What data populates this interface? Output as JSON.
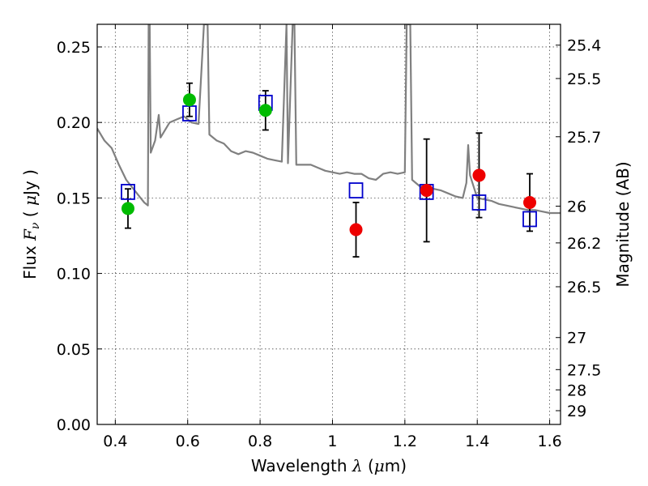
{
  "chart_data": {
    "type": "scatter",
    "title": "",
    "xlabel": {
      "prefix": "Wavelength  ",
      "symbol": "λ",
      "open": " (",
      "mu": "μ",
      "unit": "m)"
    },
    "ylabel": {
      "prefix": "Flux  ",
      "symbol": "F",
      "sub": "ν",
      "open": "  ( ",
      "mu": "μ",
      "unit": "Jy )"
    },
    "y2label": "Magnitude (AB)",
    "xlim": [
      0.35,
      1.63
    ],
    "ylim": [
      0.0,
      0.265
    ],
    "x_ticks": [
      0.4,
      0.6,
      0.8,
      1.0,
      1.2,
      1.4,
      1.6
    ],
    "x_tick_labels": [
      "0.4",
      "0.6",
      "0.8",
      "1",
      "1.2",
      "1.4",
      "1.6"
    ],
    "y_ticks": [
      0.0,
      0.05,
      0.1,
      0.15,
      0.2,
      0.25
    ],
    "y_tick_labels": [
      "0.00",
      "0.05",
      "0.10",
      "0.15",
      "0.20",
      "0.25"
    ],
    "y2_tick_labels": [
      "25.4",
      "25.5",
      "25.7",
      "26",
      "26.2",
      "26.5",
      "27",
      "27.5",
      "28",
      "29"
    ],
    "grid": true,
    "colors": {
      "spectrum": "#808080",
      "model_photometry": "#0000cc",
      "optical_obs": "#00bb00",
      "nir_obs": "#ee0000",
      "error_bar": "#000000"
    },
    "series": [
      {
        "kind": "line",
        "points": [
          [
            0.35,
            0.196
          ],
          [
            0.37,
            0.188
          ],
          [
            0.39,
            0.183
          ],
          [
            0.41,
            0.172
          ],
          [
            0.43,
            0.162
          ],
          [
            0.45,
            0.156
          ],
          [
            0.47,
            0.15
          ],
          [
            0.48,
            0.147
          ],
          [
            0.49,
            0.145
          ],
          [
            0.492,
            0.265
          ],
          [
            0.495,
            0.265
          ],
          [
            0.498,
            0.18
          ],
          [
            0.51,
            0.188
          ],
          [
            0.52,
            0.205
          ],
          [
            0.525,
            0.19
          ],
          [
            0.55,
            0.2
          ],
          [
            0.57,
            0.202
          ],
          [
            0.59,
            0.204
          ],
          [
            0.61,
            0.2
          ],
          [
            0.63,
            0.199
          ],
          [
            0.645,
            0.265
          ],
          [
            0.65,
            0.265
          ],
          [
            0.655,
            0.265
          ],
          [
            0.66,
            0.192
          ],
          [
            0.68,
            0.188
          ],
          [
            0.7,
            0.186
          ],
          [
            0.72,
            0.181
          ],
          [
            0.74,
            0.179
          ],
          [
            0.76,
            0.181
          ],
          [
            0.78,
            0.18
          ],
          [
            0.8,
            0.178
          ],
          [
            0.82,
            0.176
          ],
          [
            0.84,
            0.175
          ],
          [
            0.86,
            0.174
          ],
          [
            0.873,
            0.265
          ],
          [
            0.877,
            0.173
          ],
          [
            0.89,
            0.265
          ],
          [
            0.895,
            0.265
          ],
          [
            0.9,
            0.172
          ],
          [
            0.92,
            0.172
          ],
          [
            0.94,
            0.172
          ],
          [
            0.96,
            0.17
          ],
          [
            0.98,
            0.168
          ],
          [
            1.0,
            0.167
          ],
          [
            1.02,
            0.166
          ],
          [
            1.04,
            0.167
          ],
          [
            1.06,
            0.166
          ],
          [
            1.08,
            0.166
          ],
          [
            1.1,
            0.163
          ],
          [
            1.12,
            0.162
          ],
          [
            1.14,
            0.166
          ],
          [
            1.16,
            0.167
          ],
          [
            1.18,
            0.166
          ],
          [
            1.2,
            0.167
          ],
          [
            1.205,
            0.265
          ],
          [
            1.215,
            0.265
          ],
          [
            1.22,
            0.162
          ],
          [
            1.24,
            0.158
          ],
          [
            1.26,
            0.157
          ],
          [
            1.28,
            0.156
          ],
          [
            1.3,
            0.155
          ],
          [
            1.32,
            0.153
          ],
          [
            1.34,
            0.151
          ],
          [
            1.36,
            0.15
          ],
          [
            1.37,
            0.16
          ],
          [
            1.375,
            0.185
          ],
          [
            1.38,
            0.165
          ],
          [
            1.4,
            0.15
          ],
          [
            1.42,
            0.149
          ],
          [
            1.44,
            0.148
          ],
          [
            1.46,
            0.146
          ],
          [
            1.48,
            0.145
          ],
          [
            1.5,
            0.144
          ],
          [
            1.52,
            0.143
          ],
          [
            1.54,
            0.142
          ],
          [
            1.56,
            0.142
          ],
          [
            1.58,
            0.141
          ],
          [
            1.6,
            0.14
          ],
          [
            1.62,
            0.14
          ],
          [
            1.63,
            0.14
          ]
        ]
      },
      {
        "kind": "squares",
        "points": [
          [
            0.435,
            0.154
          ],
          [
            0.605,
            0.206
          ],
          [
            0.815,
            0.213
          ],
          [
            1.065,
            0.155
          ],
          [
            1.26,
            0.154
          ],
          [
            1.405,
            0.147
          ],
          [
            1.545,
            0.136
          ]
        ]
      },
      {
        "kind": "circles",
        "points": [
          [
            0.435,
            0.143
          ],
          [
            0.605,
            0.215
          ],
          [
            0.815,
            0.208
          ]
        ],
        "err": [
          0.013,
          0.011,
          0.013
        ]
      },
      {
        "kind": "circles",
        "points": [
          [
            1.065,
            0.129
          ],
          [
            1.26,
            0.155
          ],
          [
            1.405,
            0.165
          ],
          [
            1.545,
            0.147
          ]
        ],
        "err": [
          0.018,
          0.034,
          0.028,
          0.019
        ]
      }
    ]
  }
}
